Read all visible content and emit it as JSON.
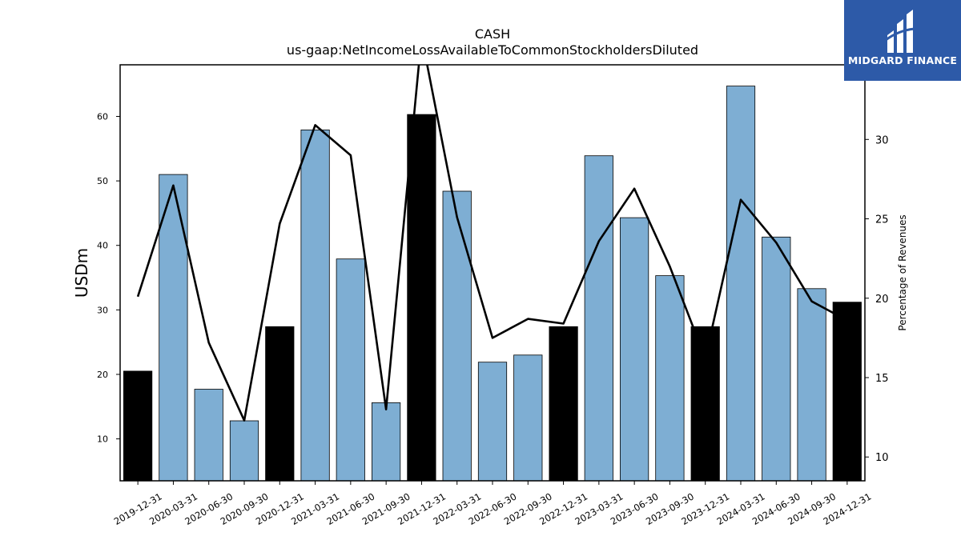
{
  "chart_data": {
    "type": "bar",
    "title": "CASH",
    "subtitle": "us-gaap:NetIncomeLossAvailableToCommonStockholdersDiluted",
    "ylabel": "USDm",
    "y2label": "Percentage of Revenues",
    "ylim": [
      3.5,
      68
    ],
    "y2lim": [
      8.5,
      34.7
    ],
    "yticks": [
      10,
      20,
      30,
      40,
      50,
      60
    ],
    "y2ticks": [
      10,
      15,
      20,
      25,
      30
    ],
    "categories": [
      "2019-12-31",
      "2020-03-31",
      "2020-06-30",
      "2020-09-30",
      "2020-12-31",
      "2021-03-31",
      "2021-06-30",
      "2021-09-30",
      "2021-12-31",
      "2022-03-31",
      "2022-06-30",
      "2022-09-30",
      "2022-12-31",
      "2023-03-31",
      "2023-06-30",
      "2023-09-30",
      "2023-12-31",
      "2024-03-31",
      "2024-06-30",
      "2024-09-30",
      "2024-12-31"
    ],
    "series": [
      {
        "type": "bar",
        "values": [
          20.5,
          51.0,
          17.7,
          12.8,
          27.4,
          57.9,
          37.9,
          15.6,
          60.3,
          48.4,
          21.9,
          23.0,
          27.4,
          53.9,
          44.3,
          35.3,
          27.4,
          64.7,
          41.3,
          33.3,
          31.2
        ],
        "colors": [
          "#000000",
          "#7eaed3",
          "#7eaed3",
          "#7eaed3",
          "#000000",
          "#7eaed3",
          "#7eaed3",
          "#7eaed3",
          "#000000",
          "#7eaed3",
          "#7eaed3",
          "#7eaed3",
          "#000000",
          "#7eaed3",
          "#7eaed3",
          "#7eaed3",
          "#000000",
          "#7eaed3",
          "#7eaed3",
          "#7eaed3",
          "#000000"
        ]
      },
      {
        "type": "line",
        "axis": "right",
        "color": "#000000",
        "values": [
          20.1,
          27.1,
          17.2,
          12.3,
          24.7,
          30.9,
          29.0,
          13.0,
          36.5,
          25.1,
          17.5,
          18.7,
          18.4,
          23.6,
          26.9,
          22.0,
          16.2,
          26.2,
          23.5,
          19.8,
          18.6
        ]
      }
    ]
  },
  "logo": {
    "text": "MIDGARD FINANCE",
    "color": "#2d5aa8"
  }
}
